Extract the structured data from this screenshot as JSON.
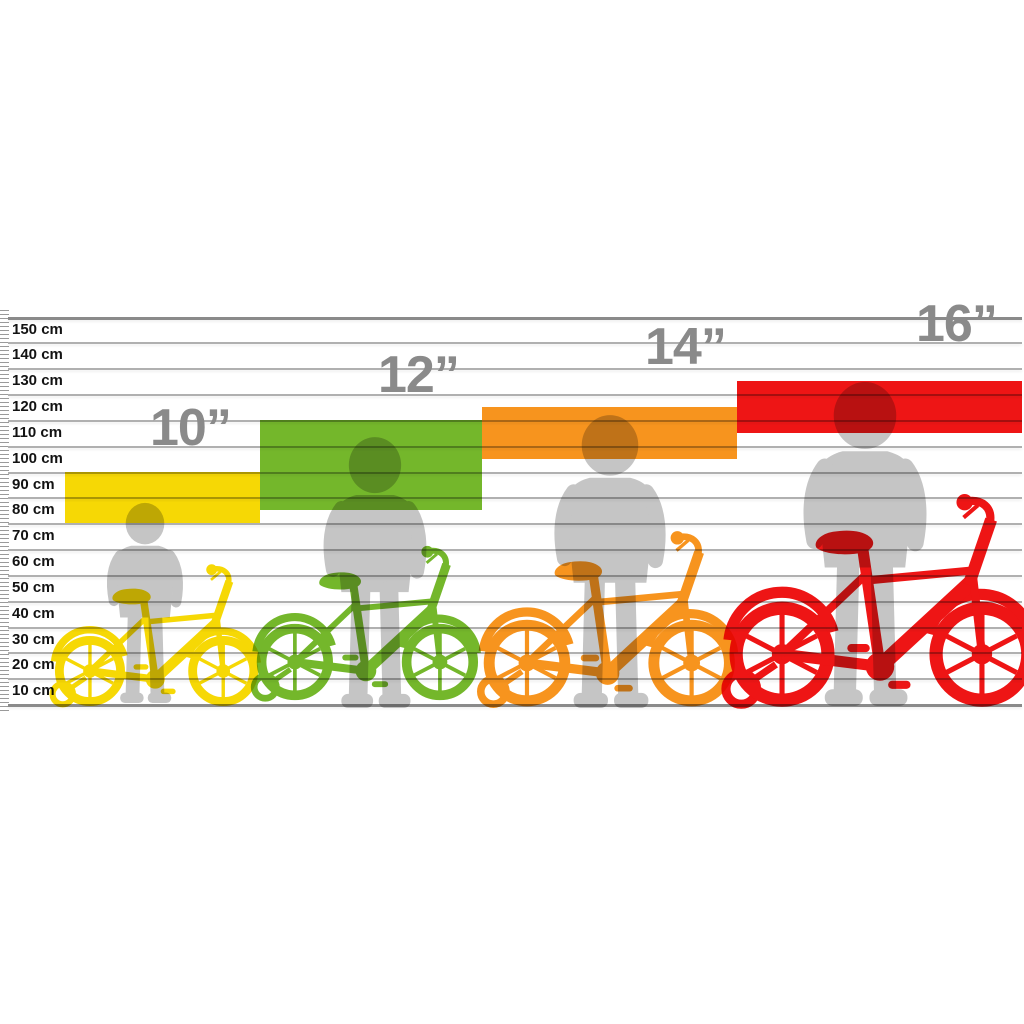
{
  "chart_data": {
    "type": "bar",
    "subtype": "horizontal-range-bands",
    "orientation": "height-ruler",
    "grid": "horizontal",
    "legend_position": "none",
    "y_axis": {
      "unit": "cm",
      "range": [
        0,
        150
      ],
      "tick_step_cm": 10,
      "tick_labels": [
        "150 cm",
        "140 cm",
        "130 cm",
        "120 cm",
        "110 cm",
        "100 cm",
        "90 cm",
        "80 cm",
        "70 cm",
        "60 cm",
        "50 cm",
        "40 cm",
        "30 cm",
        "20 cm",
        "10 cm"
      ]
    },
    "series": [
      {
        "name": "10”",
        "height_range_cm": [
          70,
          90
        ],
        "color": "#f6d805"
      },
      {
        "name": "12”",
        "height_range_cm": [
          75,
          110
        ],
        "color": "#74b72b"
      },
      {
        "name": "14”",
        "height_range_cm": [
          95,
          115
        ],
        "color": "#f7941e"
      },
      {
        "name": "16”",
        "height_range_cm": [
          105,
          125
        ],
        "color": "#ee1515"
      }
    ]
  },
  "figure": {
    "child_silhouette_color": "#c5c5c5",
    "grid_line_color": "#b0b0b0",
    "tick_label_color": "#121212",
    "size_label_color": "#8a8a8a"
  }
}
